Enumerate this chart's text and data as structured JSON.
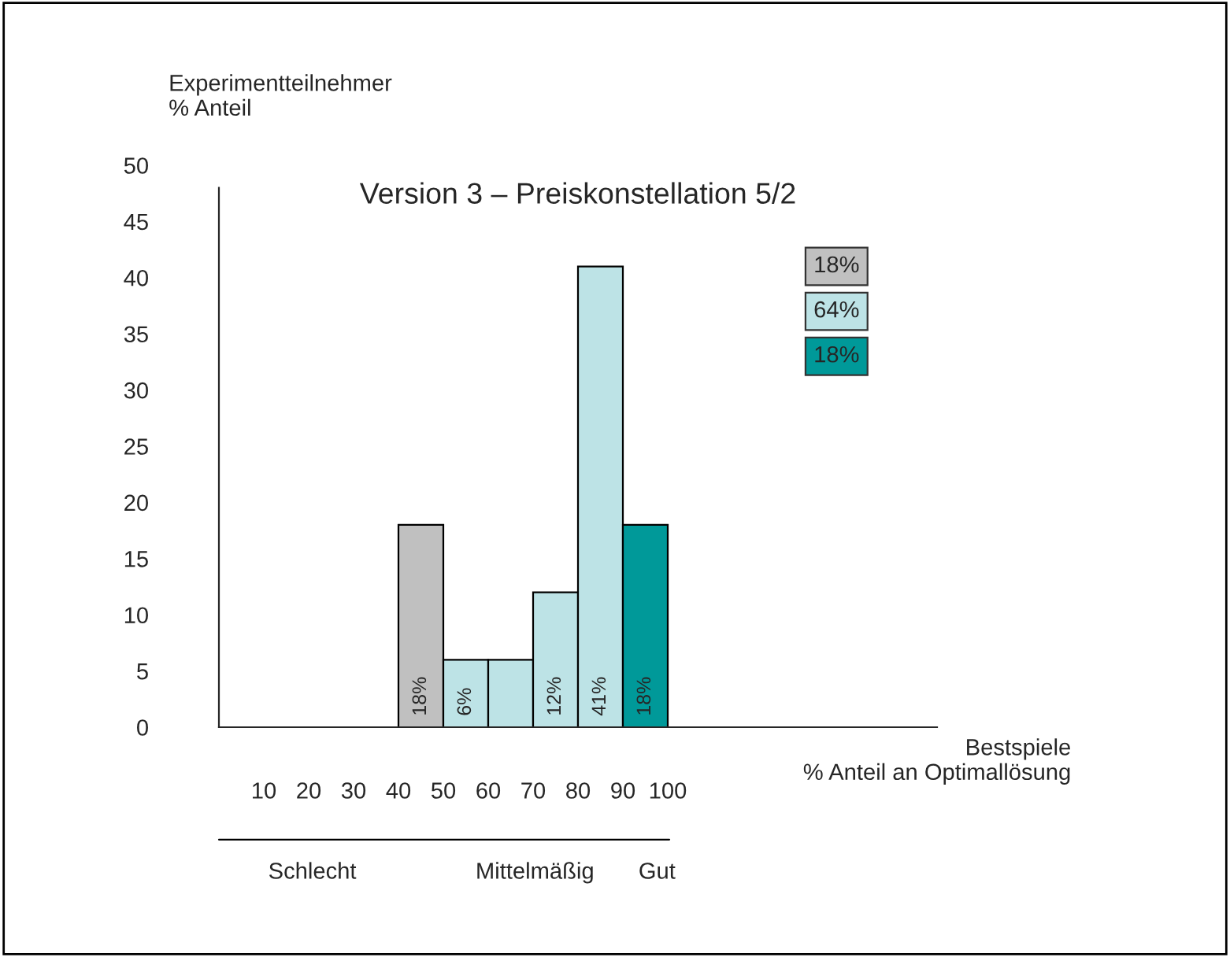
{
  "chart_data": {
    "type": "histogram",
    "title": "Version 3 – Preiskonstellation 5/2",
    "xlabel": "Bestspiele\n% Anteil an Optimallösung",
    "ylabel": "Experimentteilnehmer\n% Anteil",
    "bins": [
      40,
      50,
      60,
      70,
      80,
      90,
      100
    ],
    "series": [
      {
        "name": "18%",
        "color": "#c0c0c0",
        "values": [
          18,
          null,
          null,
          null,
          null,
          null
        ],
        "value_labels": [
          "18%",
          null,
          null,
          null,
          null,
          null
        ]
      },
      {
        "name": "64%",
        "color": "#bde3e6",
        "values": [
          null,
          6,
          6,
          12,
          41,
          null
        ],
        "value_labels": [
          null,
          "6%",
          null,
          "12%",
          "41%",
          null
        ]
      },
      {
        "name": "18%",
        "color": "#009999",
        "values": [
          null,
          null,
          null,
          null,
          null,
          18
        ],
        "value_labels": [
          null,
          null,
          null,
          null,
          null,
          "18%"
        ]
      }
    ],
    "xlim": [
      0,
      160
    ],
    "xticks": [
      10,
      20,
      30,
      40,
      50,
      60,
      70,
      80,
      90,
      100
    ],
    "ylim": [
      0,
      50
    ],
    "yticks": [
      0,
      5,
      10,
      15,
      20,
      25,
      30,
      35,
      40,
      45,
      50
    ],
    "grid": false,
    "legend": "top right",
    "annotations": [
      "Schlecht",
      "Mittelmäßig",
      "Gut"
    ]
  }
}
